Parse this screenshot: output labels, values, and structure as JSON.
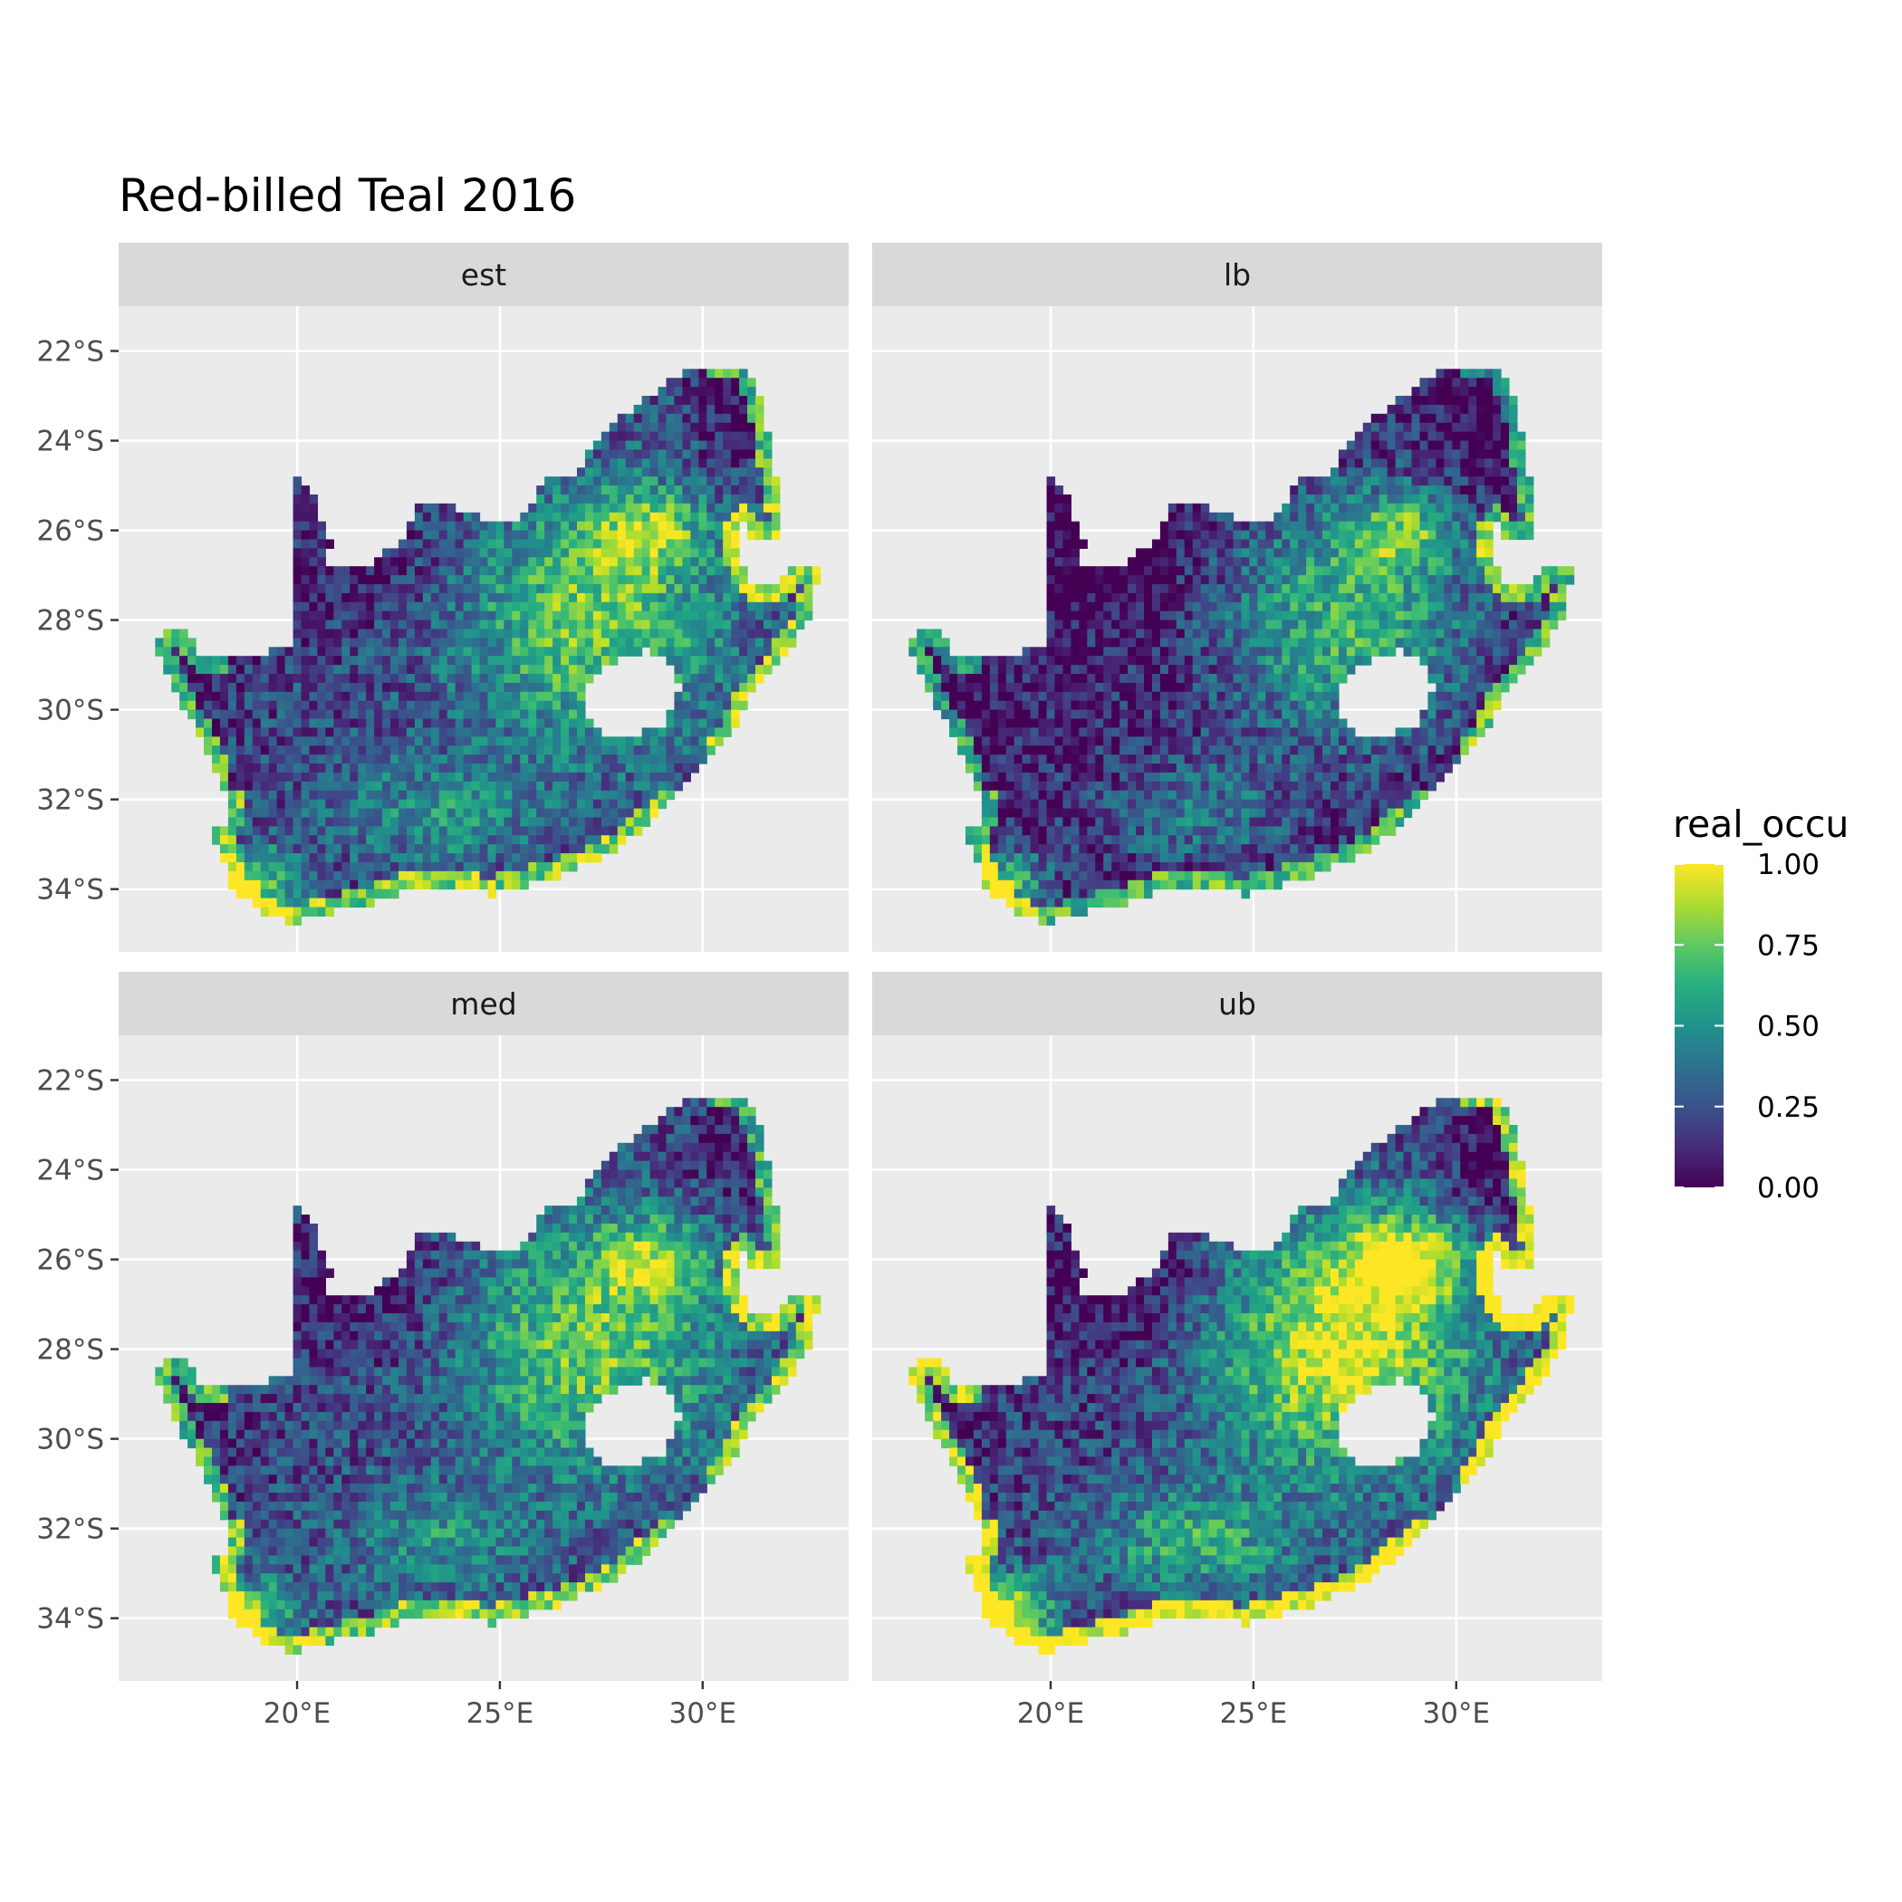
{
  "chart_data": {
    "type": "heatmap",
    "title": "Red-billed Teal 2016",
    "panels": [
      {
        "label": "est",
        "profile": {
          "base": 0.0,
          "scale": 1.0
        }
      },
      {
        "label": "lb",
        "profile": {
          "base": -0.12,
          "scale": 1.0
        }
      },
      {
        "label": "med",
        "profile": {
          "base": 0.0,
          "scale": 1.0
        }
      },
      {
        "label": "ub",
        "profile": {
          "base": 0.08,
          "scale": 1.4
        }
      }
    ],
    "x_ticks": [
      "20°E",
      "25°E",
      "30°E"
    ],
    "x_tick_values": [
      20,
      25,
      30
    ],
    "y_ticks": [
      "22°S",
      "24°S",
      "26°S",
      "28°S",
      "30°S",
      "32°S",
      "34°S"
    ],
    "y_tick_values": [
      -22,
      -24,
      -26,
      -28,
      -30,
      -32,
      -34
    ],
    "xlim": [
      15.6,
      33.6
    ],
    "ylim": [
      -35.4,
      -21.0
    ],
    "legend": {
      "title": "real_occu",
      "labels": [
        "1.00",
        "0.75",
        "0.50",
        "0.25",
        "0.00"
      ],
      "values": [
        1.0,
        0.75,
        0.5,
        0.25,
        0.0
      ],
      "colormap": "viridis",
      "position": "right"
    },
    "region_outline": [
      [
        16.45,
        -28.6
      ],
      [
        16.9,
        -28.1
      ],
      [
        17.3,
        -28.3
      ],
      [
        17.6,
        -28.8
      ],
      [
        18.5,
        -28.9
      ],
      [
        19.3,
        -28.7
      ],
      [
        19.9,
        -28.5
      ],
      [
        19.9,
        -24.8
      ],
      [
        20.4,
        -25.2
      ],
      [
        20.8,
        -26.3
      ],
      [
        20.7,
        -26.8
      ],
      [
        21.7,
        -26.8
      ],
      [
        22.5,
        -26.3
      ],
      [
        22.9,
        -25.5
      ],
      [
        23.4,
        -25.3
      ],
      [
        24.0,
        -25.5
      ],
      [
        24.8,
        -25.8
      ],
      [
        25.5,
        -25.7
      ],
      [
        26.2,
        -24.8
      ],
      [
        26.9,
        -24.7
      ],
      [
        27.5,
        -23.8
      ],
      [
        28.4,
        -23.2
      ],
      [
        29.2,
        -22.6
      ],
      [
        30.2,
        -22.3
      ],
      [
        31.0,
        -22.3
      ],
      [
        31.5,
        -23.2
      ],
      [
        31.7,
        -24.4
      ],
      [
        32.0,
        -25.8
      ],
      [
        31.9,
        -26.2
      ],
      [
        31.3,
        -26.3
      ],
      [
        31.0,
        -25.8
      ],
      [
        30.8,
        -26.4
      ],
      [
        31.2,
        -27.2
      ],
      [
        31.9,
        -27.3
      ],
      [
        32.1,
        -26.8
      ],
      [
        32.9,
        -26.9
      ],
      [
        32.6,
        -28.0
      ],
      [
        32.0,
        -28.8
      ],
      [
        31.3,
        -29.5
      ],
      [
        30.7,
        -30.5
      ],
      [
        29.9,
        -31.3
      ],
      [
        29.1,
        -32.2
      ],
      [
        27.9,
        -33.1
      ],
      [
        26.5,
        -33.7
      ],
      [
        25.6,
        -33.9
      ],
      [
        24.8,
        -34.1
      ],
      [
        23.6,
        -33.95
      ],
      [
        22.6,
        -34.05
      ],
      [
        21.5,
        -34.4
      ],
      [
        20.6,
        -34.55
      ],
      [
        19.9,
        -34.8
      ],
      [
        19.3,
        -34.6
      ],
      [
        18.9,
        -34.4
      ],
      [
        18.8,
        -34.1
      ],
      [
        18.45,
        -34.2
      ],
      [
        18.4,
        -33.9
      ],
      [
        18.15,
        -33.3
      ],
      [
        17.9,
        -32.7
      ],
      [
        18.25,
        -32.6
      ],
      [
        18.3,
        -31.9
      ],
      [
        17.6,
        -30.6
      ],
      [
        17.0,
        -29.6
      ]
    ],
    "hole_outline": [
      [
        27.1,
        -29.6
      ],
      [
        27.5,
        -29.15
      ],
      [
        28.1,
        -28.8
      ],
      [
        28.7,
        -28.65
      ],
      [
        29.3,
        -29.0
      ],
      [
        29.45,
        -29.6
      ],
      [
        29.0,
        -30.3
      ],
      [
        28.4,
        -30.55
      ],
      [
        27.8,
        -30.65
      ],
      [
        27.3,
        -30.3
      ],
      [
        27.0,
        -30.05
      ]
    ],
    "grid": true
  }
}
